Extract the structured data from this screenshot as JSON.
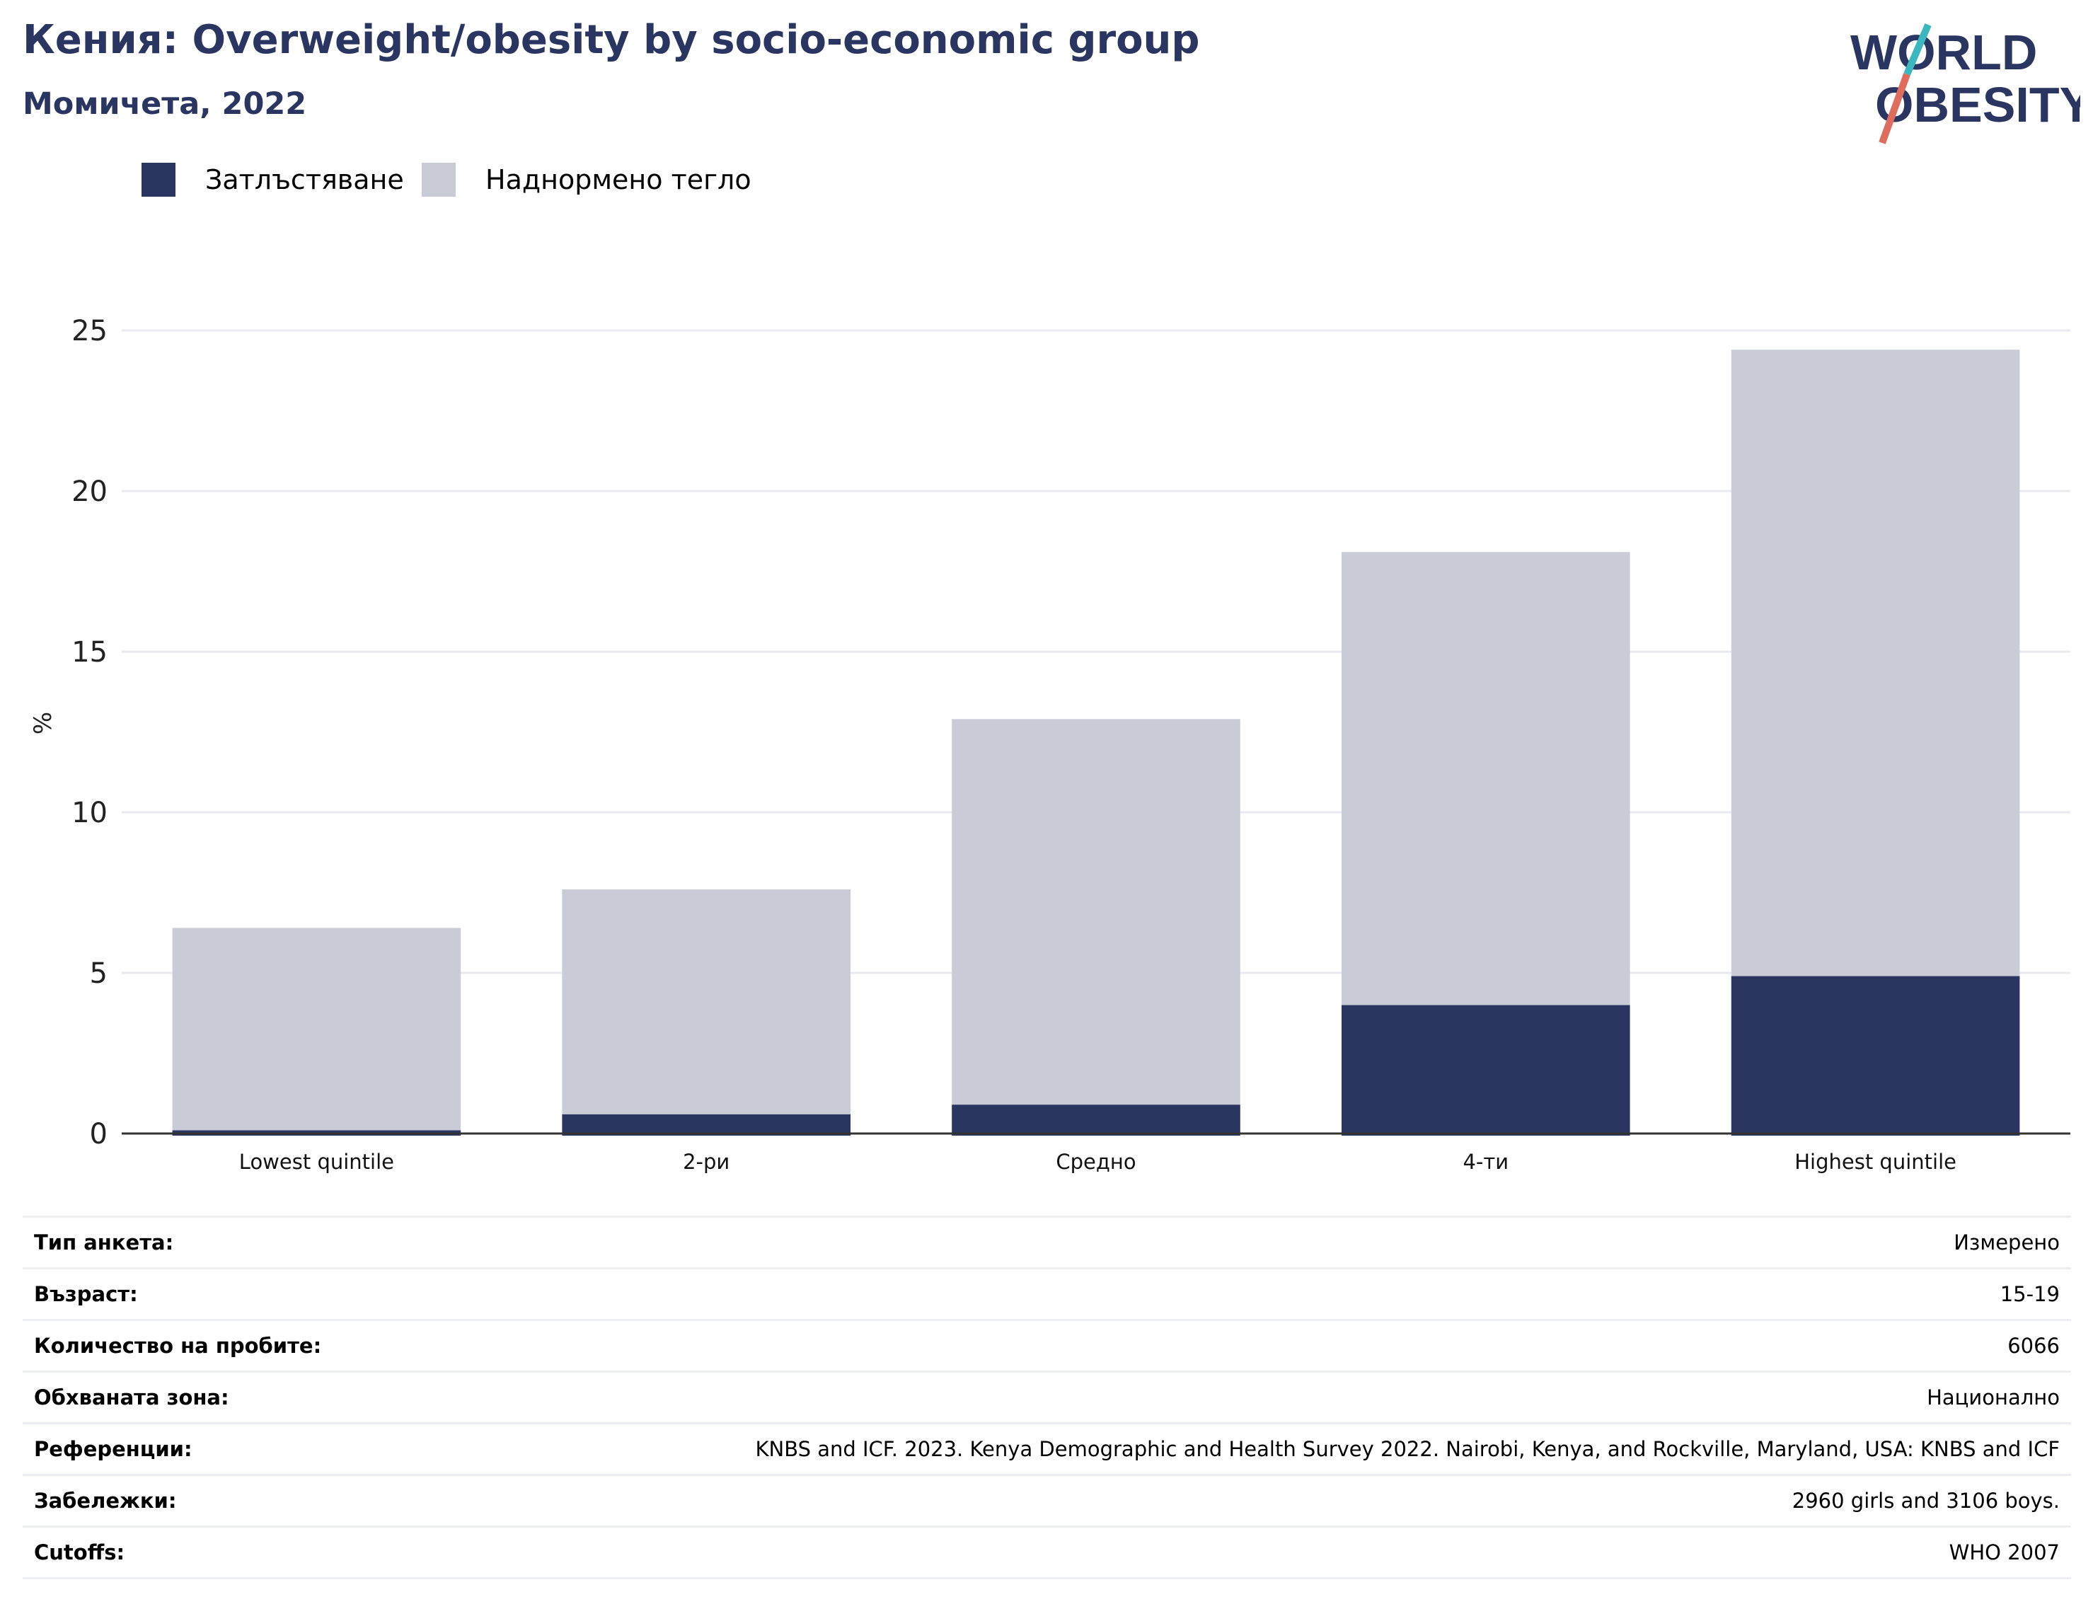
{
  "header": {
    "title": "Кения: Overweight/obesity by socio-economic group",
    "subtitle": "Момичета, 2022"
  },
  "logo": {
    "line1": "WORLD",
    "line2": "OBESITY"
  },
  "colors": {
    "obesity": "#2a3561",
    "overweight": "#c9cbd7",
    "title": "#2a3561",
    "grid": "#e9eaf0",
    "axis": "#333333",
    "logo_teal": "#3ab7bf",
    "logo_coral": "#e06c5e"
  },
  "legend": [
    {
      "label": "Затлъстяване",
      "color": "#2a3561"
    },
    {
      "label": "Наднормено тегло",
      "color": "#c9cbd7"
    }
  ],
  "chart_data": {
    "type": "bar",
    "stacked": true,
    "categories": [
      "Lowest quintile",
      "2-ри",
      "Средно",
      "4-ти",
      "Highest quintile"
    ],
    "series": [
      {
        "name": "Затлъстяване",
        "values": [
          0.1,
          0.6,
          0.9,
          4.0,
          4.9
        ]
      },
      {
        "name": "Наднормено тегло",
        "values": [
          6.3,
          7.0,
          12.0,
          14.1,
          19.5
        ]
      }
    ],
    "title": "Кения: Overweight/obesity by socio-economic group",
    "subtitle": "Момичета, 2022",
    "xlabel": "",
    "ylabel": "%",
    "ylim": [
      0,
      25
    ],
    "yticks": [
      0,
      5,
      10,
      15,
      20,
      25
    ],
    "grid": true,
    "legend_position": "top-left"
  },
  "info": [
    {
      "label": "Тип анкета:",
      "value": "Измерено"
    },
    {
      "label": "Възраст:",
      "value": "15-19"
    },
    {
      "label": "Количество на пробите:",
      "value": "6066"
    },
    {
      "label": "Обхваната зона:",
      "value": "Национално"
    },
    {
      "label": "Референции:",
      "value": "KNBS and ICF. 2023. Kenya Demographic and Health Survey 2022. Nairobi, Kenya, and Rockville, Maryland, USA: KNBS and ICF"
    },
    {
      "label": "Забележки:",
      "value": "2960 girls and 3106 boys."
    },
    {
      "label": "Cutoffs:",
      "value": "WHO 2007"
    }
  ]
}
